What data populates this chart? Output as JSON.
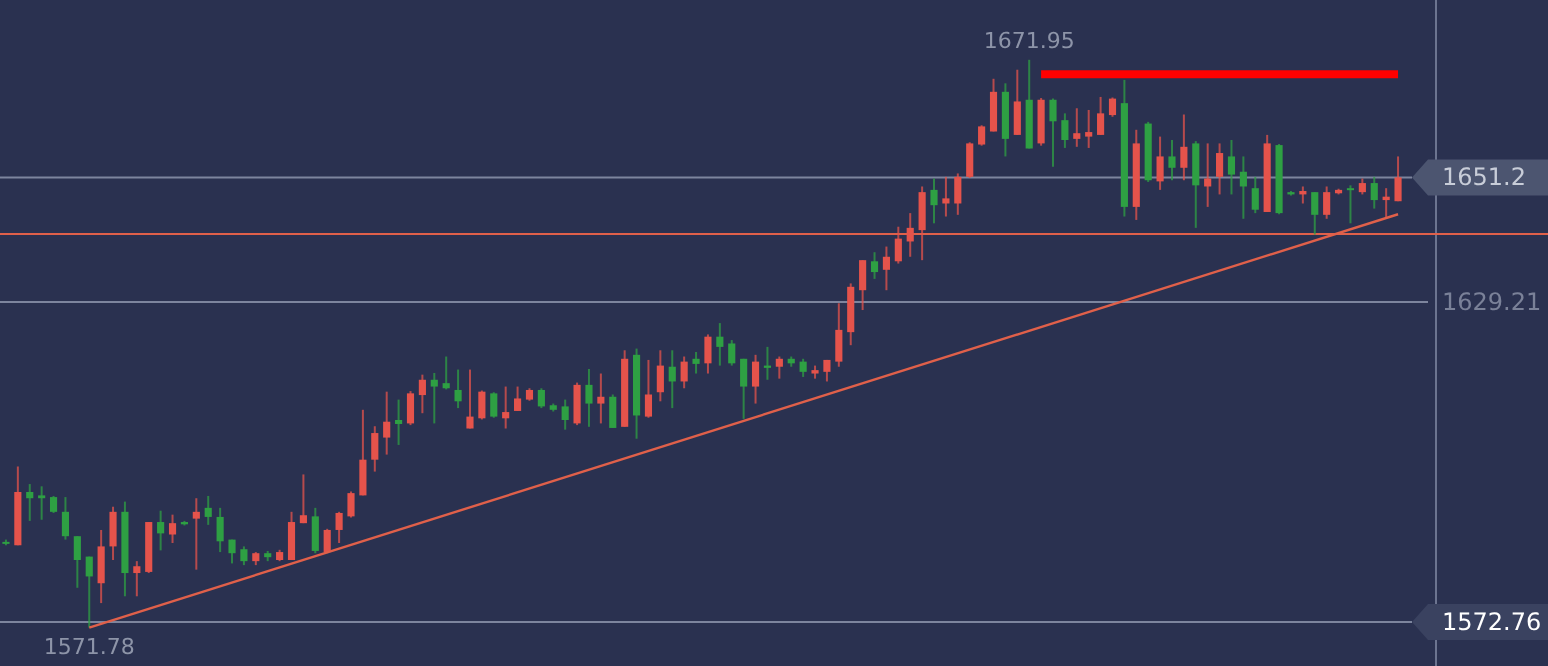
{
  "chart_data": {
    "type": "candlestick",
    "categories": [
      null,
      null,
      null,
      null,
      null,
      null,
      null,
      null,
      null,
      null,
      null,
      null,
      null,
      null,
      null,
      null,
      null,
      null,
      null,
      null,
      null,
      null,
      null,
      null,
      null,
      null,
      null,
      null,
      null,
      null,
      null,
      null,
      null,
      null,
      null,
      null,
      null,
      null,
      null,
      null,
      null,
      null,
      null,
      null,
      null,
      null,
      null,
      null,
      null,
      null,
      null,
      null,
      null,
      null,
      null,
      null,
      null,
      null,
      null,
      null,
      null,
      null,
      null,
      null,
      null,
      null,
      null,
      null,
      null,
      null,
      null,
      null,
      null,
      null,
      null,
      null,
      null,
      null,
      null,
      null,
      null,
      null,
      null,
      null,
      null,
      null,
      null,
      null,
      null,
      null,
      null,
      null,
      null,
      null,
      null,
      null,
      null,
      null,
      null,
      null,
      null,
      null,
      null,
      null,
      null,
      null,
      null,
      null,
      null,
      null,
      null,
      null,
      null,
      null,
      null,
      null,
      null,
      null
    ],
    "ohlc": [
      [
        1586.9,
        1587.3,
        1586.3,
        1586.6
      ],
      [
        1586.3,
        1600.2,
        1586.3,
        1595.7
      ],
      [
        1595.7,
        1597.1,
        1590.6,
        1594.6
      ],
      [
        1595.1,
        1596.7,
        1590.8,
        1594.6
      ],
      [
        1594.8,
        1595.0,
        1592.0,
        1592.2
      ],
      [
        1592.2,
        1594.8,
        1587.3,
        1587.9
      ],
      [
        1587.9,
        1587.9,
        1578.8,
        1583.7
      ],
      [
        1584.3,
        1584.3,
        1571.78,
        1580.8
      ],
      [
        1579.6,
        1589.0,
        1576.1,
        1586.1
      ],
      [
        1586.1,
        1593.1,
        1583.7,
        1592.2
      ],
      [
        1592.2,
        1594.0,
        1577.3,
        1581.4
      ],
      [
        1581.4,
        1583.5,
        1577.3,
        1582.6
      ],
      [
        1581.6,
        1590.4,
        1581.4,
        1590.4
      ],
      [
        1590.4,
        1592.4,
        1585.4,
        1588.4
      ],
      [
        1588.2,
        1591.7,
        1586.7,
        1590.2
      ],
      [
        1590.4,
        1590.6,
        1589.8,
        1590.0
      ],
      [
        1591.0,
        1594.6,
        1582.0,
        1592.2
      ],
      [
        1592.9,
        1595.0,
        1589.9,
        1591.3
      ],
      [
        1591.3,
        1592.9,
        1585.1,
        1587.0
      ],
      [
        1587.3,
        1587.3,
        1583.1,
        1584.9
      ],
      [
        1585.6,
        1586.1,
        1582.8,
        1583.5
      ],
      [
        1583.5,
        1585.1,
        1582.8,
        1584.9
      ],
      [
        1584.9,
        1585.3,
        1583.5,
        1584.2
      ],
      [
        1583.7,
        1585.5,
        1583.5,
        1585.1
      ],
      [
        1583.7,
        1592.2,
        1583.7,
        1590.4
      ],
      [
        1590.2,
        1598.8,
        1590.2,
        1591.6
      ],
      [
        1591.4,
        1592.9,
        1584.9,
        1585.3
      ],
      [
        1585.1,
        1589.2,
        1584.9,
        1589.0
      ],
      [
        1589.0,
        1592.2,
        1586.7,
        1592.0
      ],
      [
        1591.4,
        1595.8,
        1591.2,
        1595.5
      ],
      [
        1595.1,
        1610.2,
        1595.1,
        1601.4
      ],
      [
        1601.4,
        1607.3,
        1599.3,
        1606.1
      ],
      [
        1605.3,
        1613.4,
        1602.3,
        1608.1
      ],
      [
        1608.4,
        1612.0,
        1604.0,
        1607.7
      ],
      [
        1607.8,
        1613.5,
        1607.5,
        1613.1
      ],
      [
        1612.8,
        1616.4,
        1609.6,
        1615.5
      ],
      [
        1615.5,
        1616.7,
        1607.8,
        1614.3
      ],
      [
        1614.9,
        1619.6,
        1613.8,
        1614.0
      ],
      [
        1613.7,
        1617.3,
        1610.5,
        1611.7
      ],
      [
        1606.9,
        1617.3,
        1606.9,
        1609.0
      ],
      [
        1608.7,
        1613.6,
        1608.5,
        1613.4
      ],
      [
        1613.1,
        1613.3,
        1608.8,
        1609.0
      ],
      [
        1608.7,
        1614.3,
        1606.9,
        1609.8
      ],
      [
        1610.0,
        1614.3,
        1610.0,
        1612.2
      ],
      [
        1612.0,
        1614.0,
        1611.8,
        1613.7
      ],
      [
        1613.7,
        1614.0,
        1610.5,
        1610.8
      ],
      [
        1611.0,
        1611.3,
        1609.9,
        1610.2
      ],
      [
        1610.8,
        1612.0,
        1606.7,
        1608.4
      ],
      [
        1607.8,
        1615.0,
        1607.5,
        1614.6
      ],
      [
        1614.6,
        1617.4,
        1607.2,
        1611.3
      ],
      [
        1611.3,
        1616.6,
        1607.8,
        1612.5
      ],
      [
        1612.5,
        1612.9,
        1607.0,
        1607.0
      ],
      [
        1607.2,
        1620.7,
        1607.2,
        1619.2
      ],
      [
        1619.9,
        1621.0,
        1605.1,
        1609.2
      ],
      [
        1609.0,
        1619.0,
        1608.8,
        1612.9
      ],
      [
        1613.3,
        1620.7,
        1611.7,
        1618.0
      ],
      [
        1617.8,
        1620.7,
        1610.5,
        1615.2
      ],
      [
        1615.2,
        1619.6,
        1614.0,
        1618.7
      ],
      [
        1619.2,
        1620.4,
        1616.6,
        1618.3
      ],
      [
        1618.4,
        1623.5,
        1616.6,
        1623.1
      ],
      [
        1623.1,
        1625.5,
        1618.0,
        1621.3
      ],
      [
        1621.9,
        1622.5,
        1618.0,
        1618.4
      ],
      [
        1619.2,
        1619.2,
        1608.6,
        1614.3
      ],
      [
        1614.3,
        1619.9,
        1611.3,
        1618.7
      ],
      [
        1618.0,
        1621.3,
        1615.5,
        1617.6
      ],
      [
        1617.8,
        1619.6,
        1615.7,
        1619.2
      ],
      [
        1619.2,
        1619.6,
        1617.8,
        1618.4
      ],
      [
        1618.7,
        1619.2,
        1616.0,
        1616.9
      ],
      [
        1616.6,
        1618.0,
        1615.7,
        1617.2
      ],
      [
        1616.9,
        1619.0,
        1615.2,
        1619.0
      ],
      [
        1618.7,
        1629.0,
        1617.8,
        1624.3
      ],
      [
        1623.9,
        1632.5,
        1621.6,
        1631.9
      ],
      [
        1631.3,
        1636.6,
        1627.8,
        1636.6
      ],
      [
        1636.4,
        1638.0,
        1633.3,
        1634.5
      ],
      [
        1634.9,
        1639.0,
        1631.3,
        1637.2
      ],
      [
        1636.4,
        1642.5,
        1636.0,
        1640.4
      ],
      [
        1639.9,
        1644.9,
        1637.2,
        1642.3
      ],
      [
        1641.9,
        1649.6,
        1636.6,
        1648.6
      ],
      [
        1649.0,
        1651.0,
        1643.1,
        1646.3
      ],
      [
        1646.6,
        1651.3,
        1644.3,
        1647.5
      ],
      [
        1646.6,
        1651.9,
        1644.6,
        1651.3
      ],
      [
        1651.3,
        1657.4,
        1651.1,
        1657.2
      ],
      [
        1657.0,
        1660.4,
        1656.8,
        1660.2
      ],
      [
        1659.3,
        1668.6,
        1659.3,
        1666.3
      ],
      [
        1666.3,
        1667.8,
        1654.9,
        1658.0
      ],
      [
        1658.7,
        1670.2,
        1658.7,
        1664.6
      ],
      [
        1664.9,
        1671.95,
        1656.3,
        1656.3
      ],
      [
        1657.2,
        1665.2,
        1656.8,
        1664.9
      ],
      [
        1664.9,
        1665.1,
        1653.1,
        1661.1
      ],
      [
        1661.3,
        1662.5,
        1656.4,
        1657.8
      ],
      [
        1658.0,
        1663.4,
        1656.6,
        1659.0
      ],
      [
        1658.4,
        1663.1,
        1656.4,
        1659.2
      ],
      [
        1658.7,
        1665.4,
        1658.7,
        1662.5
      ],
      [
        1662.2,
        1665.3,
        1661.9,
        1665.1
      ],
      [
        1664.3,
        1668.4,
        1644.3,
        1646.0
      ],
      [
        1646.0,
        1659.6,
        1643.7,
        1657.2
      ],
      [
        1660.7,
        1661.0,
        1650.4,
        1650.7
      ],
      [
        1650.5,
        1658.4,
        1649.0,
        1654.9
      ],
      [
        1654.9,
        1657.8,
        1650.7,
        1652.9
      ],
      [
        1652.9,
        1662.3,
        1650.7,
        1656.6
      ],
      [
        1657.2,
        1657.6,
        1642.3,
        1649.8
      ],
      [
        1649.6,
        1657.2,
        1646.0,
        1651.0
      ],
      [
        1651.3,
        1657.2,
        1648.2,
        1655.5
      ],
      [
        1654.9,
        1657.8,
        1648.2,
        1651.7
      ],
      [
        1652.2,
        1654.9,
        1643.9,
        1649.6
      ],
      [
        1649.3,
        1651.3,
        1644.9,
        1645.5
      ],
      [
        1645.1,
        1658.7,
        1645.1,
        1657.2
      ],
      [
        1656.9,
        1657.1,
        1644.7,
        1644.9
      ],
      [
        1648.6,
        1648.8,
        1648.0,
        1648.2
      ],
      [
        1648.2,
        1649.6,
        1646.6,
        1648.8
      ],
      [
        1648.6,
        1648.6,
        1641.1,
        1644.6
      ],
      [
        1644.6,
        1649.6,
        1643.9,
        1648.6
      ],
      [
        1648.4,
        1649.2,
        1648.2,
        1649.0
      ],
      [
        1649.3,
        1649.8,
        1643.1,
        1649.0
      ],
      [
        1648.6,
        1651.0,
        1648.2,
        1650.2
      ],
      [
        1650.2,
        1651.3,
        1645.7,
        1647.2
      ],
      [
        1647.2,
        1649.3,
        1643.9,
        1647.8
      ],
      [
        1647.0,
        1654.9,
        1647.0,
        1651.2
      ]
    ],
    "colors": [
      "#2ea043",
      "#e5534b",
      "#2ea043",
      "#2ea043",
      "#2ea043",
      "#2ea043",
      "#2ea043",
      "#2ea043",
      "#e5534b",
      "#e5534b",
      "#2ea043",
      "#e5534b",
      "#e5534b",
      "#2ea043",
      "#e5534b",
      "#2ea043",
      "#e5534b",
      "#2ea043",
      "#2ea043",
      "#2ea043",
      "#2ea043",
      "#e5534b",
      "#2ea043",
      "#e5534b",
      "#e5534b",
      "#e5534b",
      "#2ea043",
      "#e5534b",
      "#e5534b",
      "#e5534b",
      "#e5534b",
      "#e5534b",
      "#e5534b",
      "#2ea043",
      "#e5534b",
      "#e5534b",
      "#2ea043",
      "#2ea043",
      "#2ea043",
      "#e5534b",
      "#e5534b",
      "#2ea043",
      "#e5534b",
      "#e5534b",
      "#e5534b",
      "#2ea043",
      "#2ea043",
      "#2ea043",
      "#e5534b",
      "#2ea043",
      "#e5534b",
      "#2ea043",
      "#e5534b",
      "#2ea043",
      "#e5534b",
      "#e5534b",
      "#2ea043",
      "#e5534b",
      "#2ea043",
      "#e5534b",
      "#2ea043",
      "#2ea043",
      "#2ea043",
      "#e5534b",
      "#2ea043",
      "#e5534b",
      "#2ea043",
      "#2ea043",
      "#e5534b",
      "#e5534b",
      "#e5534b",
      "#e5534b",
      "#e5534b",
      "#2ea043",
      "#e5534b",
      "#e5534b",
      "#e5534b",
      "#e5534b",
      "#2ea043",
      "#e5534b",
      "#e5534b",
      "#e5534b",
      "#e5534b",
      "#e5534b",
      "#2ea043",
      "#e5534b",
      "#2ea043",
      "#e5534b",
      "#2ea043",
      "#2ea043",
      "#e5534b",
      "#e5534b",
      "#e5534b",
      "#e5534b",
      "#2ea043",
      "#e5534b",
      "#2ea043",
      "#e5534b",
      "#2ea043",
      "#e5534b",
      "#2ea043",
      "#e5534b",
      "#e5534b",
      "#2ea043",
      "#2ea043",
      "#2ea043",
      "#e5534b",
      "#2ea043",
      "#2ea043",
      "#e5534b",
      "#2ea043",
      "#e5534b",
      "#e5534b",
      "#2ea043",
      "#e5534b",
      "#2ea043",
      "#e5534b",
      "#e5534b"
    ],
    "series": [
      {
        "type": "line",
        "color": "#e0604a",
        "values": [
          null,
          null,
          null,
          null,
          null,
          null,
          null,
          1571.78,
          null,
          null,
          null,
          null,
          null,
          null,
          null,
          null,
          null,
          null,
          null,
          null,
          null,
          null,
          null,
          null,
          null,
          null,
          null,
          null,
          null,
          null,
          null,
          null,
          null,
          null,
          null,
          null,
          null,
          null,
          null,
          null,
          null,
          null,
          null,
          null,
          null,
          null,
          null,
          null,
          null,
          null,
          null,
          null,
          null,
          null,
          null,
          null,
          null,
          null,
          null,
          null,
          null,
          null,
          null,
          null,
          null,
          null,
          null,
          null,
          null,
          null,
          null,
          null,
          null,
          null,
          null,
          null,
          null,
          null,
          null,
          null,
          null,
          null,
          null,
          null,
          null,
          null,
          null,
          null,
          null,
          null,
          null,
          null,
          null,
          null,
          null,
          null,
          null,
          null,
          null,
          null,
          null,
          null,
          null,
          null,
          null,
          null,
          null,
          null,
          null,
          null,
          null,
          null,
          null,
          null,
          null,
          null,
          null,
          1644.7
        ]
      },
      {
        "type": "line",
        "color": "#ff0000",
        "values": [
          null,
          null,
          null,
          null,
          null,
          null,
          null,
          null,
          null,
          null,
          null,
          null,
          null,
          null,
          null,
          null,
          null,
          null,
          null,
          null,
          null,
          null,
          null,
          null,
          null,
          null,
          null,
          null,
          null,
          null,
          null,
          null,
          null,
          null,
          null,
          null,
          null,
          null,
          null,
          null,
          null,
          null,
          null,
          null,
          null,
          null,
          null,
          null,
          null,
          null,
          null,
          null,
          null,
          null,
          null,
          null,
          null,
          null,
          null,
          null,
          null,
          null,
          null,
          null,
          null,
          null,
          null,
          null,
          null,
          null,
          null,
          null,
          null,
          null,
          null,
          null,
          null,
          null,
          null,
          null,
          null,
          null,
          null,
          null,
          null,
          null,
          null,
          1669.4,
          null,
          null,
          null,
          null,
          null,
          null,
          null,
          null,
          null,
          null,
          null,
          null,
          null,
          null,
          null,
          null,
          null,
          null,
          null,
          null,
          null,
          null,
          null,
          null,
          null,
          null,
          null,
          null,
          null,
          1669.4
        ]
      }
    ],
    "ylim": [
      1565,
      1682.5
    ],
    "yticks": [
      1572.76,
      1629.21,
      1651.2
    ],
    "tick_labels": "y",
    "grid": "y",
    "ref_lines": [
      {
        "axis": "y",
        "value": 1641.2,
        "color": "#e0604a"
      }
    ],
    "annotations": [
      {
        "text": "1671.95",
        "y": 1671.95
      },
      {
        "text": "1571.78",
        "y": 1571.78
      }
    ]
  }
}
